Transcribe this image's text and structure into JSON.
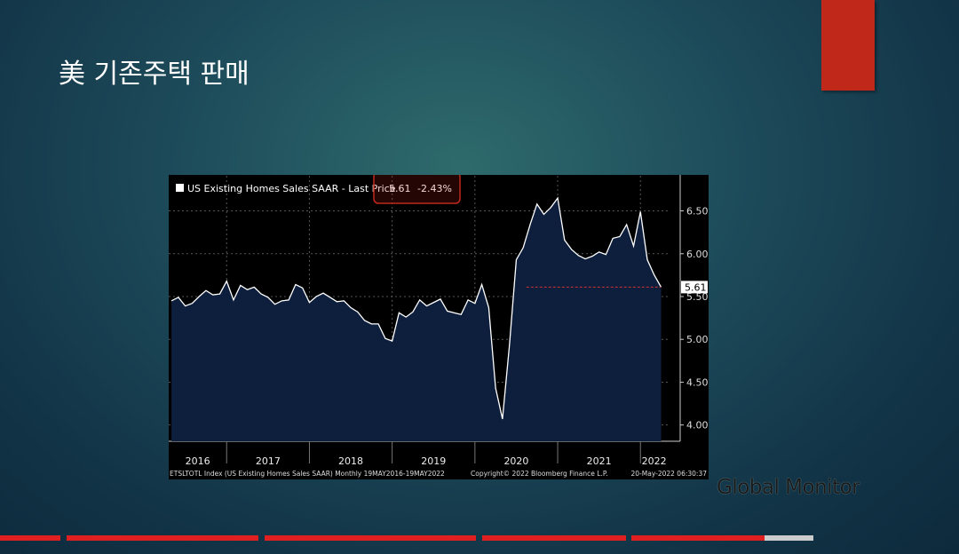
{
  "slide": {
    "title": "美 기존주택 판매",
    "brand": "Global Monitor"
  },
  "chart_data": {
    "type": "line",
    "area": true,
    "legend_name": "US Existing Homes Sales SAAR - Last Price",
    "change_label": "-2.43%",
    "footer_left": "ETSLTOTL Index (US Existing Homes Sales SAAR) Monthly 19MAY2016-19MAY2022",
    "footer_mid": "Copyright© 2022 Bloomberg Finance L.P.",
    "footer_right": "20-May-2022 06:30:37",
    "x": [
      2016.333,
      2016.417,
      2016.5,
      2016.583,
      2016.667,
      2016.75,
      2016.833,
      2016.917,
      2017,
      2017.083,
      2017.167,
      2017.25,
      2017.333,
      2017.417,
      2017.5,
      2017.583,
      2017.667,
      2017.75,
      2017.833,
      2017.917,
      2018,
      2018.083,
      2018.167,
      2018.25,
      2018.333,
      2018.417,
      2018.5,
      2018.583,
      2018.667,
      2018.75,
      2018.833,
      2018.917,
      2019,
      2019.083,
      2019.167,
      2019.25,
      2019.333,
      2019.417,
      2019.5,
      2019.583,
      2019.667,
      2019.75,
      2019.833,
      2019.917,
      2020,
      2020.083,
      2020.167,
      2020.25,
      2020.333,
      2020.417,
      2020.5,
      2020.583,
      2020.667,
      2020.75,
      2020.833,
      2020.917,
      2021,
      2021.083,
      2021.167,
      2021.25,
      2021.333,
      2021.417,
      2021.5,
      2021.583,
      2021.667,
      2021.75,
      2021.833,
      2021.917,
      2022,
      2022.083,
      2022.167,
      2022.25
    ],
    "series": [
      {
        "name": "US Existing Homes Sales SAAR",
        "color": "#ffffff",
        "values": [
          5.45,
          5.49,
          5.39,
          5.42,
          5.5,
          5.57,
          5.52,
          5.53,
          5.68,
          5.46,
          5.63,
          5.58,
          5.61,
          5.53,
          5.49,
          5.41,
          5.45,
          5.46,
          5.64,
          5.6,
          5.43,
          5.5,
          5.54,
          5.49,
          5.44,
          5.45,
          5.37,
          5.32,
          5.22,
          5.18,
          5.18,
          5.01,
          4.98,
          5.31,
          5.26,
          5.32,
          5.46,
          5.39,
          5.43,
          5.47,
          5.33,
          5.31,
          5.29,
          5.46,
          5.42,
          5.64,
          5.37,
          4.43,
          4.07,
          4.93,
          5.93,
          6.07,
          6.34,
          6.58,
          6.46,
          6.54,
          6.65,
          6.16,
          6.05,
          5.98,
          5.94,
          5.97,
          6.02,
          5.99,
          6.18,
          6.2,
          6.34,
          6.09,
          6.49,
          5.93,
          5.75,
          5.61
        ]
      }
    ],
    "xlim": [
      2016.3,
      2022.33
    ],
    "xticks": [
      {
        "value": 2016,
        "label": "2016"
      },
      {
        "value": 2017,
        "label": "2017"
      },
      {
        "value": 2018,
        "label": "2018"
      },
      {
        "value": 2019,
        "label": "2019"
      },
      {
        "value": 2020,
        "label": "2020"
      },
      {
        "value": 2021,
        "label": "2021"
      },
      {
        "value": 2022,
        "label": "2022"
      }
    ],
    "ylim": [
      3.81,
      6.91
    ],
    "yticks": [
      {
        "value": 4,
        "label": "4.00"
      },
      {
        "value": 4.5,
        "label": "4.50"
      },
      {
        "value": 5,
        "label": "5.00"
      },
      {
        "value": 5.5,
        "label": "5.50"
      },
      {
        "value": 6,
        "label": "6.00"
      },
      {
        "value": 6.5,
        "label": "6.50"
      }
    ],
    "grid": true
  }
}
